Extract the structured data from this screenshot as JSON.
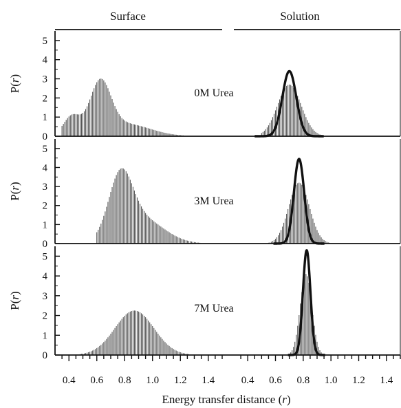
{
  "chart_data": {
    "type": "bar",
    "column_titles": [
      "Surface",
      "Solution"
    ],
    "xlabel": {
      "prefix": "Energy transfer distance (",
      "var": "r",
      "suffix": ")"
    },
    "ylabel": {
      "prefix": "P(",
      "var": "r",
      "suffix": ")"
    },
    "surface_xlim": [
      0.3,
      1.5
    ],
    "solution_xlim": [
      0.3,
      1.5
    ],
    "surface_ticks": [
      "0.4",
      "0.6",
      "0.8",
      "1.0",
      "1.2",
      "1.4"
    ],
    "solution_ticks": [
      "0.4",
      "0.6",
      "0.8",
      "1.0",
      "1.2",
      "1.4"
    ],
    "ylim": [
      0,
      5.5
    ],
    "yticks": [
      "0",
      "1",
      "2",
      "3",
      "4",
      "5"
    ],
    "panels": [
      {
        "annotation": "0M Urea",
        "surface": {
          "name": "Surface histogram",
          "peaks": [
            [
              0.625,
              2.6,
              0.075
            ],
            [
              0.42,
              1.0,
              0.06
            ],
            [
              0.8,
              0.65,
              0.18
            ]
          ]
        },
        "solution": {
          "name": "Solution histogram",
          "peaks": [
            [
              0.7,
              2.7,
              0.085
            ]
          ],
          "xmin": 0.5,
          "xmax": 1.08
        },
        "fit": {
          "mu": 0.7,
          "amp": 3.4,
          "sigma": 0.05
        }
      },
      {
        "annotation": "3M Urea",
        "surface": {
          "name": "Surface histogram",
          "peaks": [
            [
              0.77,
              3.1,
              0.085
            ],
            [
              0.92,
              1.3,
              0.16
            ]
          ],
          "xmin": 0.6
        },
        "solution": {
          "name": "Solution histogram",
          "peaks": [
            [
              0.77,
              3.2,
              0.075
            ]
          ],
          "xmin": 0.5,
          "xmax": 1.02
        },
        "fit": {
          "mu": 0.77,
          "amp": 4.45,
          "sigma": 0.037
        }
      },
      {
        "annotation": "7M Urea",
        "surface": {
          "name": "Surface histogram",
          "peaks": [
            [
              0.87,
              2.25,
              0.14
            ]
          ]
        },
        "solution": {
          "name": "Solution histogram",
          "peaks": [
            [
              0.82,
              4.1,
              0.042
            ]
          ],
          "xmin": 0.5,
          "xmax": 1.1
        },
        "fit": {
          "mu": 0.825,
          "amp": 5.3,
          "sigma": 0.027
        }
      }
    ]
  }
}
